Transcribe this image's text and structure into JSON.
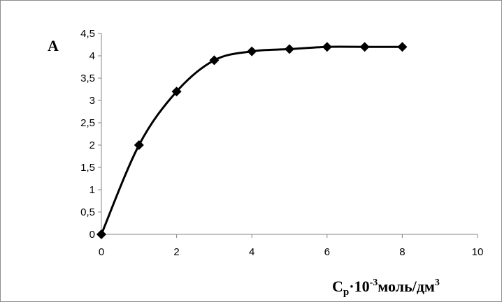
{
  "chart_data": {
    "type": "line",
    "title": "",
    "ylabel": "A",
    "xlabel": {
      "base": "C",
      "sub": "p",
      "mid": "·10",
      "exp": "-3",
      "unit": "моль/дм",
      "unit_exp": "3"
    },
    "xlim": [
      0,
      10
    ],
    "ylim": [
      0,
      4.5
    ],
    "x_ticks": [
      0,
      2,
      4,
      6,
      8,
      10
    ],
    "y_ticks": [
      0,
      0.5,
      1,
      1.5,
      2,
      2.5,
      3,
      3.5,
      4,
      4.5
    ],
    "x_tick_labels": [
      "0",
      "2",
      "4",
      "6",
      "8",
      "10"
    ],
    "y_tick_labels": [
      "0",
      "0,5",
      "1",
      "1,5",
      "2",
      "2,5",
      "3",
      "3,5",
      "4",
      "4,5"
    ],
    "grid": false,
    "legend": "none",
    "series": [
      {
        "x": [
          0,
          1,
          2,
          3,
          4,
          5,
          6,
          7,
          8
        ],
        "y": [
          0,
          2.0,
          3.2,
          3.9,
          4.1,
          4.15,
          4.2,
          4.2,
          4.2
        ],
        "marker": "diamond",
        "color": "#000000",
        "smooth": true
      }
    ]
  }
}
